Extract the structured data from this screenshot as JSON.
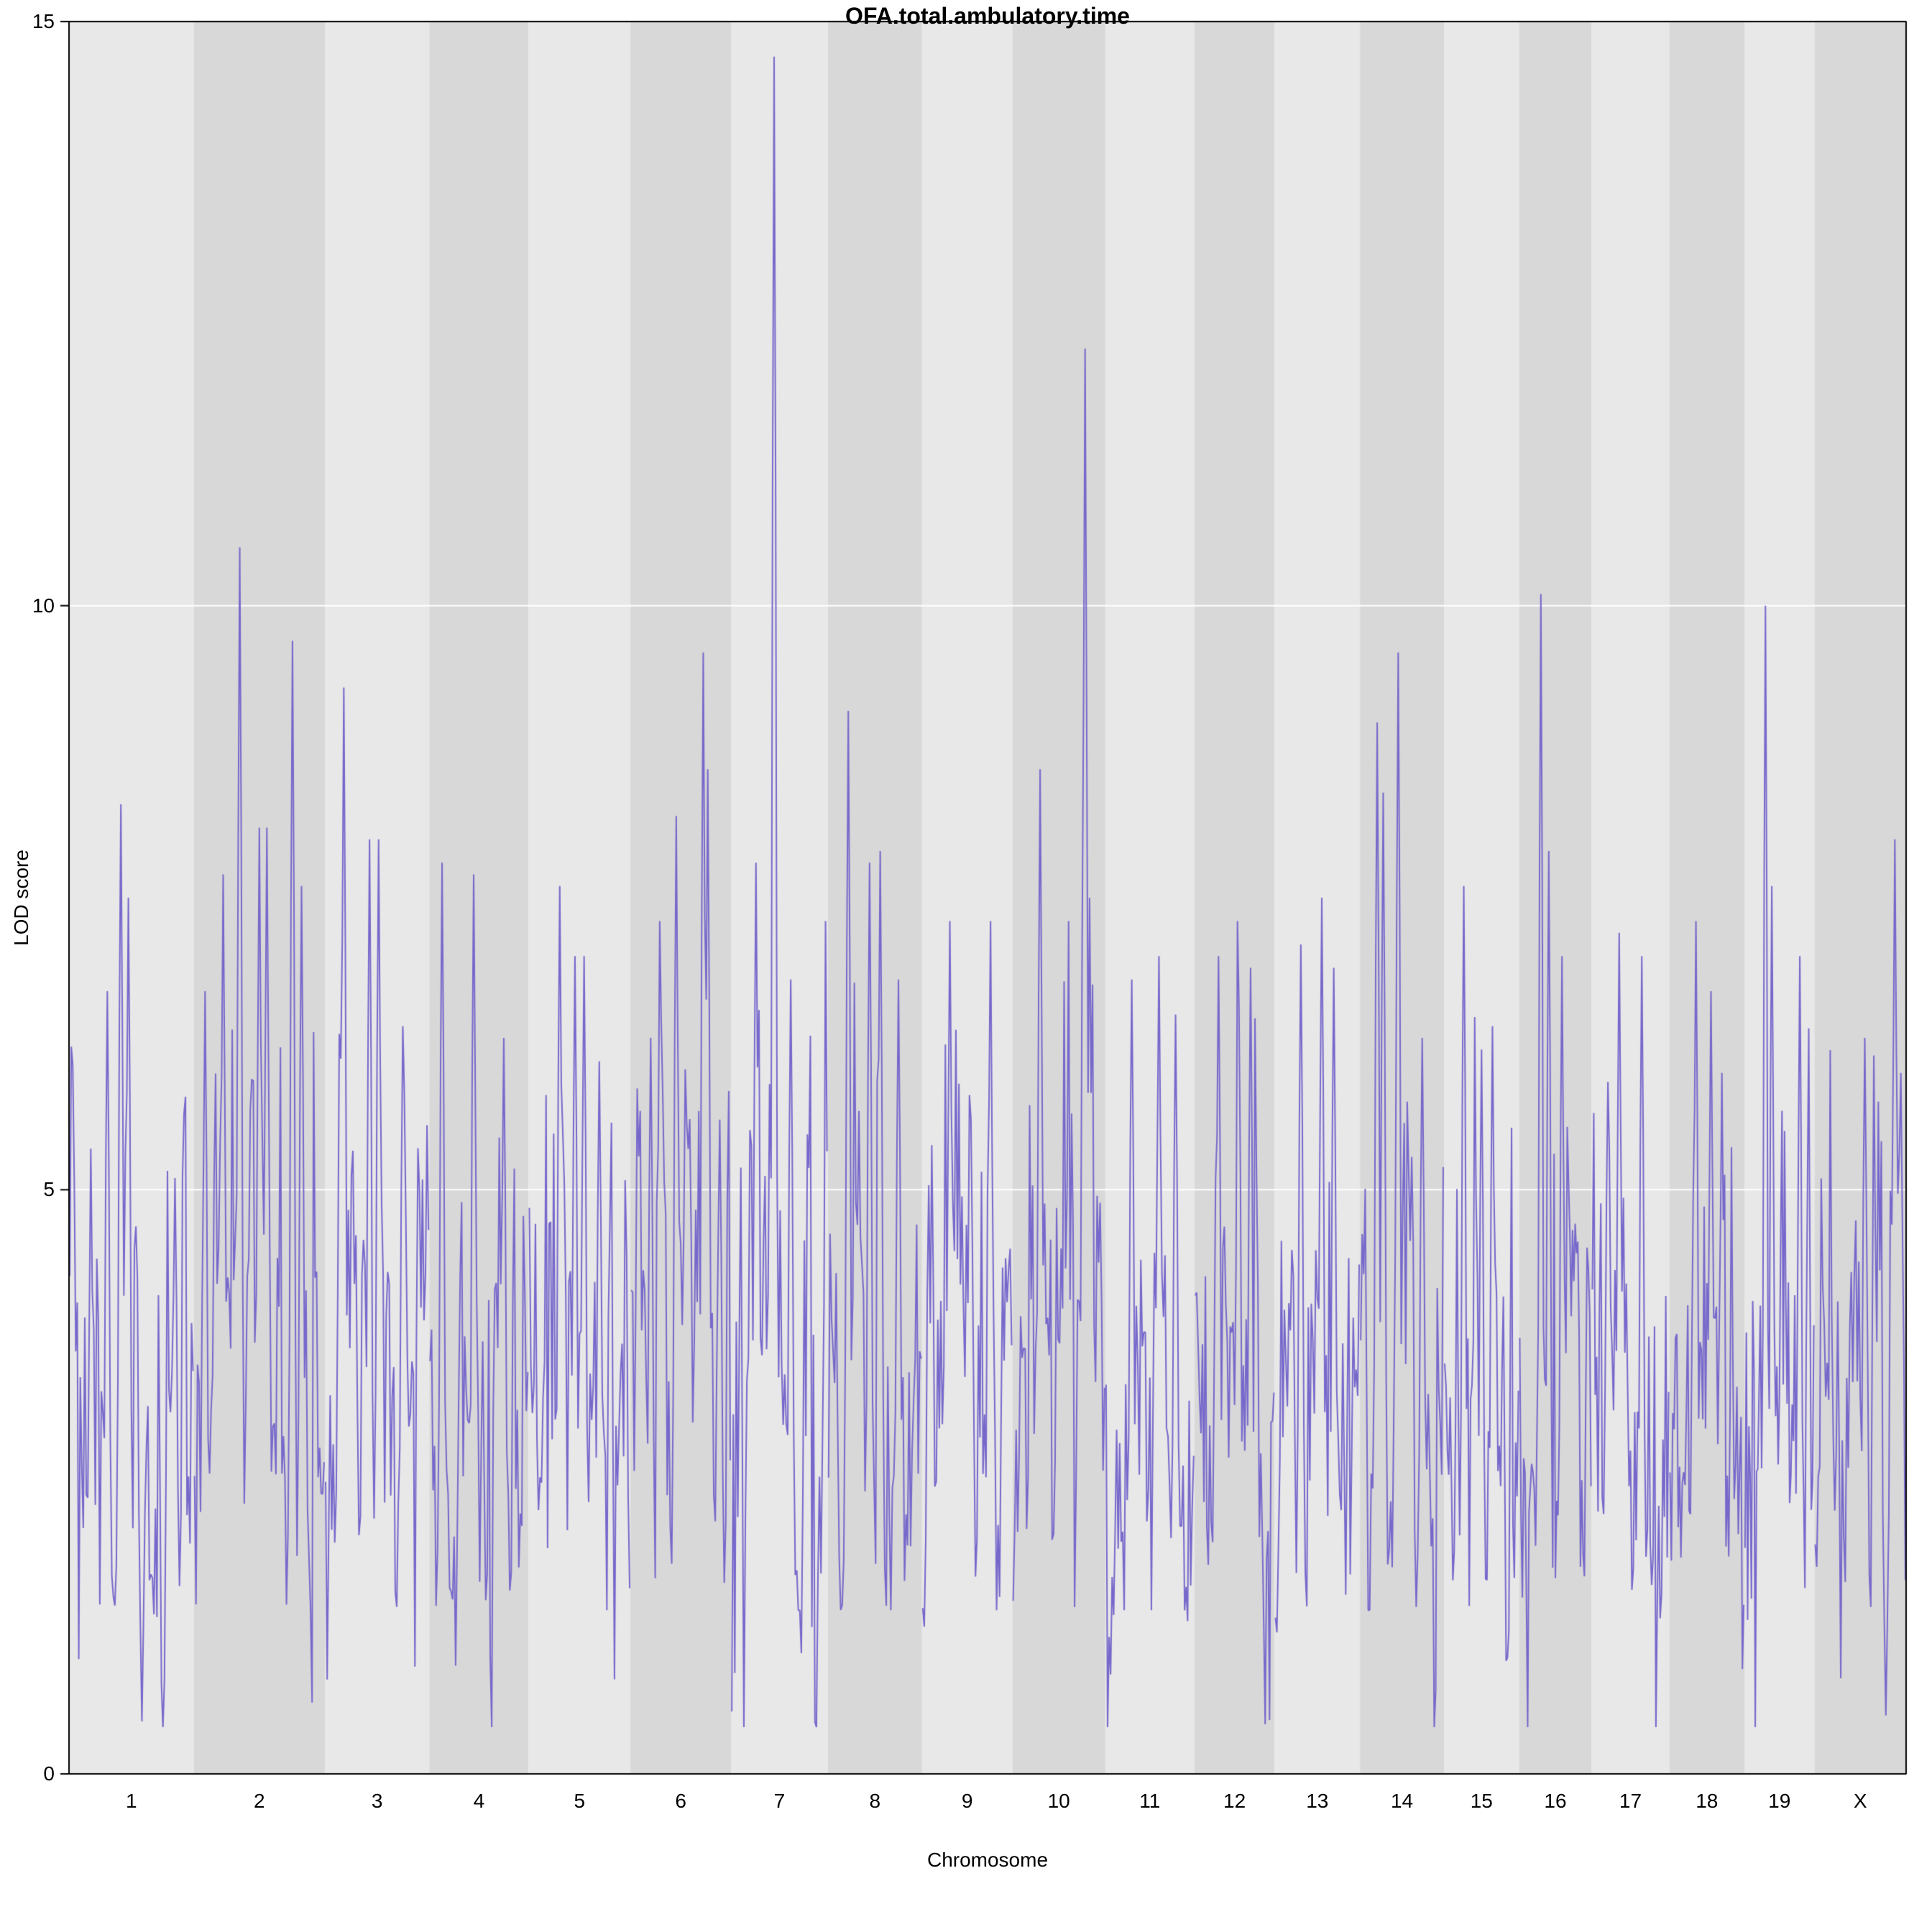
{
  "chart_data": {
    "type": "line",
    "title": "OFA.total.ambulatory.time",
    "xlabel": "Chromosome",
    "ylabel": "LOD score",
    "ylim": [
      0,
      15
    ],
    "yticks": [
      0,
      5,
      10,
      15
    ],
    "grid_y": [
      5,
      10
    ],
    "line_color": "#7668cb",
    "band_colors": [
      "#e8e8e8",
      "#d8d8d8"
    ],
    "background": "#ffffff",
    "seed": 7,
    "baseline_mean": 3.15,
    "legend_position": "none",
    "grid_on": true,
    "chromosomes": [
      {
        "name": "1",
        "width": 98,
        "peaks": [
          {
            "pos": 0.3,
            "lod": 6.7
          },
          {
            "pos": 0.42,
            "lod": 8.3
          },
          {
            "pos": 0.47,
            "lod": 7.5
          },
          {
            "pos": 0.85,
            "lod": 5.1
          }
        ],
        "dips": [
          {
            "pos": 0.58,
            "lod": 0.45
          }
        ]
      },
      {
        "name": "2",
        "width": 103,
        "peaks": [
          {
            "pos": 0.08,
            "lod": 6.7
          },
          {
            "pos": 0.22,
            "lod": 7.7
          },
          {
            "pos": 0.35,
            "lod": 10.5
          },
          {
            "pos": 0.5,
            "lod": 8.1
          },
          {
            "pos": 0.56,
            "lod": 8.1
          },
          {
            "pos": 0.75,
            "lod": 9.7
          },
          {
            "pos": 0.82,
            "lod": 7.6
          }
        ]
      },
      {
        "name": "3",
        "width": 82,
        "peaks": [
          {
            "pos": 0.18,
            "lod": 9.3
          },
          {
            "pos": 0.42,
            "lod": 8.0
          },
          {
            "pos": 0.52,
            "lod": 8.0
          },
          {
            "pos": 0.75,
            "lod": 6.4
          }
        ]
      },
      {
        "name": "4",
        "width": 78,
        "peaks": [
          {
            "pos": 0.12,
            "lod": 7.8
          },
          {
            "pos": 0.45,
            "lod": 7.7
          },
          {
            "pos": 0.75,
            "lod": 6.3
          }
        ]
      },
      {
        "name": "5",
        "width": 80,
        "peaks": [
          {
            "pos": 0.3,
            "lod": 7.6
          },
          {
            "pos": 0.45,
            "lod": 7.0
          },
          {
            "pos": 0.55,
            "lod": 7.0
          },
          {
            "pos": 0.7,
            "lod": 6.1
          }
        ]
      },
      {
        "name": "6",
        "width": 79,
        "peaks": [
          {
            "pos": 0.2,
            "lod": 6.3
          },
          {
            "pos": 0.45,
            "lod": 8.2
          },
          {
            "pos": 0.72,
            "lod": 9.6
          },
          {
            "pos": 0.78,
            "lod": 8.6
          },
          {
            "pos": 0.9,
            "lod": 5.6
          }
        ]
      },
      {
        "name": "7",
        "width": 76,
        "peaks": [
          {
            "pos": 0.25,
            "lod": 7.8
          },
          {
            "pos": 0.45,
            "lod": 14.7
          },
          {
            "pos": 0.62,
            "lod": 6.8
          }
        ]
      },
      {
        "name": "8",
        "width": 74,
        "peaks": [
          {
            "pos": 0.22,
            "lod": 9.1
          },
          {
            "pos": 0.45,
            "lod": 7.8
          },
          {
            "pos": 0.55,
            "lod": 7.9
          },
          {
            "pos": 0.75,
            "lod": 6.8
          }
        ]
      },
      {
        "name": "9",
        "width": 71,
        "peaks": [
          {
            "pos": 0.3,
            "lod": 7.3
          },
          {
            "pos": 0.55,
            "lod": 5.6
          },
          {
            "pos": 0.75,
            "lod": 5.5
          }
        ]
      },
      {
        "name": "10",
        "width": 73,
        "peaks": [
          {
            "pos": 0.3,
            "lod": 8.6
          },
          {
            "pos": 0.78,
            "lod": 12.2
          },
          {
            "pos": 0.84,
            "lod": 7.5
          }
        ]
      },
      {
        "name": "11",
        "width": 70,
        "peaks": [
          {
            "pos": 0.3,
            "lod": 6.8
          },
          {
            "pos": 0.6,
            "lod": 7.0
          },
          {
            "pos": 0.8,
            "lod": 6.5
          }
        ]
      },
      {
        "name": "12",
        "width": 63,
        "peaks": [
          {
            "pos": 0.3,
            "lod": 7.0
          },
          {
            "pos": 0.55,
            "lod": 6.6
          },
          {
            "pos": 0.7,
            "lod": 6.9
          }
        ]
      },
      {
        "name": "13",
        "width": 67,
        "peaks": [
          {
            "pos": 0.3,
            "lod": 7.1
          },
          {
            "pos": 0.55,
            "lod": 7.5
          },
          {
            "pos": 0.7,
            "lod": 6.9
          }
        ]
      },
      {
        "name": "14",
        "width": 66,
        "peaks": [
          {
            "pos": 0.2,
            "lod": 9.0
          },
          {
            "pos": 0.28,
            "lod": 8.4
          },
          {
            "pos": 0.45,
            "lod": 9.6
          },
          {
            "pos": 0.75,
            "lod": 6.3
          }
        ]
      },
      {
        "name": "15",
        "width": 59,
        "peaks": [
          {
            "pos": 0.25,
            "lod": 7.6
          },
          {
            "pos": 0.5,
            "lod": 6.2
          },
          {
            "pos": 0.65,
            "lod": 6.4
          }
        ]
      },
      {
        "name": "16",
        "width": 57,
        "peaks": [
          {
            "pos": 0.3,
            "lod": 10.1
          },
          {
            "pos": 0.4,
            "lod": 7.9
          },
          {
            "pos": 0.6,
            "lod": 7.0
          }
        ]
      },
      {
        "name": "17",
        "width": 61,
        "peaks": [
          {
            "pos": 0.35,
            "lod": 7.2
          },
          {
            "pos": 0.65,
            "lod": 7.0
          }
        ]
      },
      {
        "name": "18",
        "width": 59,
        "peaks": [
          {
            "pos": 0.35,
            "lod": 7.3
          },
          {
            "pos": 0.55,
            "lod": 6.7
          },
          {
            "pos": 0.7,
            "lod": 6.0
          }
        ]
      },
      {
        "name": "19",
        "width": 55,
        "peaks": [
          {
            "pos": 0.3,
            "lod": 10.0
          },
          {
            "pos": 0.38,
            "lod": 7.6
          },
          {
            "pos": 0.8,
            "lod": 7.0
          }
        ]
      },
      {
        "name": "X",
        "width": 72,
        "peaks": [
          {
            "pos": 0.55,
            "lod": 6.3
          },
          {
            "pos": 0.88,
            "lod": 8.0
          },
          {
            "pos": 0.95,
            "lod": 6.0
          }
        ],
        "dips": [
          {
            "pos": 0.78,
            "lod": 0.5
          }
        ]
      }
    ]
  }
}
